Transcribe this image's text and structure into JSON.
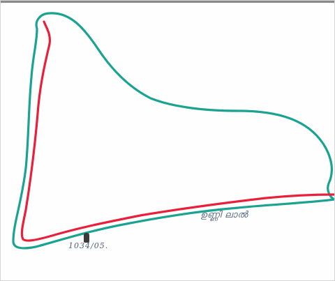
{
  "image": {
    "colors": {
      "outer_outline": "#1aa391",
      "inner_outline": "#e8203c",
      "handwriting": "#5c6f86",
      "background": "#fefefe"
    },
    "annotations": {
      "label": "ഉണ്ണി ലാൽ",
      "number": "1034/05."
    }
  }
}
